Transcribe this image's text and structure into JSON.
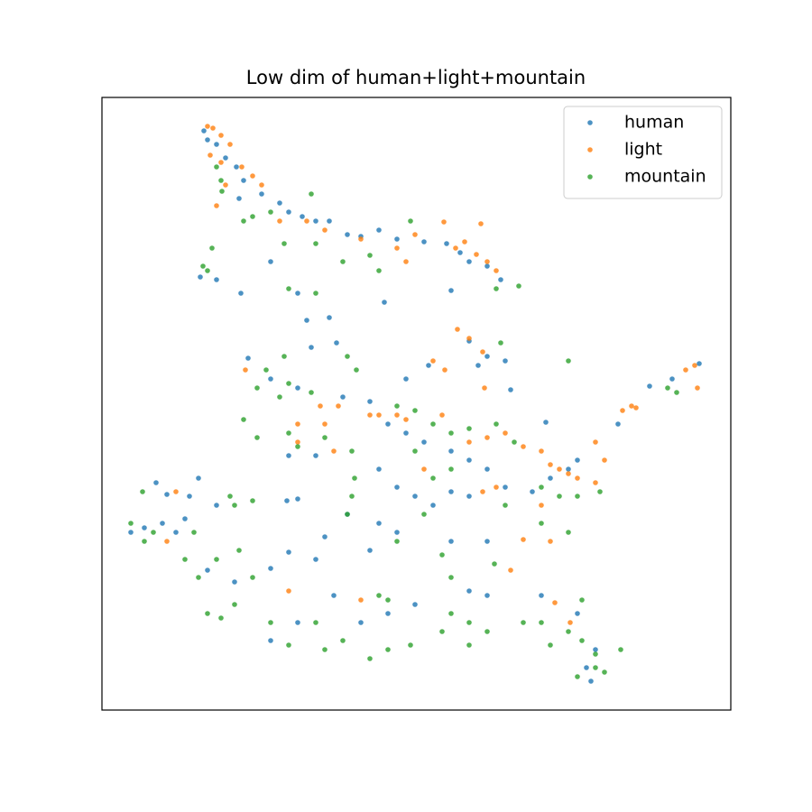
{
  "chart_data": {
    "type": "scatter",
    "title": "Low dim of human+light+mountain",
    "xlim": [
      113,
      810
    ],
    "ylim": [
      0,
      679
    ],
    "legend": "upper right",
    "series": [
      {
        "name": "human",
        "color": "#1f77b4",
        "x": [
          226,
          230,
          240,
          250,
          262,
          270,
          265,
          290,
          310,
          320,
          335,
          350,
          365,
          385,
          400,
          420,
          440,
          470,
          495,
          510,
          520,
          540,
          555,
          500,
          426,
          267,
          222,
          240,
          300,
          330,
          340,
          365,
          345,
          373,
          520,
          540,
          560,
          566,
          275,
          300,
          330,
          380,
          410,
          430,
          450,
          470,
          500,
          520,
          540,
          560,
          590,
          610,
          630,
          640,
          605,
          685,
          720,
          745,
          775,
          173,
          185,
          210,
          220,
          240,
          160,
          145,
          180,
          195,
          318,
          330,
          385,
          420,
          440,
          500,
          540,
          230,
          260,
          300,
          320,
          350,
          370,
          400,
          430,
          460,
          300,
          330,
          520,
          540,
          600,
          640,
          660,
          650,
          655,
          420,
          440,
          460,
          480,
          500,
          520,
          410,
          360,
          350,
          320,
          450,
          475,
          530,
          205
        ],
        "y": [
          642,
          632,
          627,
          612,
          602,
          587,
          567,
          572,
          562,
          552,
          547,
          542,
          542,
          527,
          525,
          532,
          522,
          519,
          517,
          507,
          497,
          492,
          477,
          465,
          452,
          462,
          480,
          477,
          497,
          462,
          432,
          435,
          402,
          407,
          409,
          392,
          387,
          355,
          390,
          367,
          357,
          347,
          342,
          317,
          307,
          297,
          287,
          277,
          267,
          247,
          242,
          257,
          267,
          277,
          319,
          317,
          359,
          367,
          384,
          252,
          239,
          237,
          257,
          227,
          202,
          197,
          207,
          197,
          232,
          234,
          217,
          207,
          197,
          187,
          187,
          155,
          142,
          157,
          175,
          167,
          127,
          97,
          107,
          117,
          77,
          97,
          132,
          127,
          127,
          107,
          67,
          47,
          32,
          267,
          247,
          237,
          227,
          242,
          237,
          177,
          192,
          282,
          282,
          367,
          382,
          382,
          212
        ]
      },
      {
        "name": "light",
        "color": "#ff7f0e",
        "x": [
          230,
          236,
          245,
          255,
          233,
          245,
          268,
          280,
          290,
          240,
          250,
          310,
          340,
          360,
          400,
          440,
          450,
          460,
          492,
          533,
          505,
          515,
          528,
          540,
          550,
          507,
          520,
          535,
          480,
          493,
          537,
          272,
          355,
          375,
          410,
          420,
          440,
          450,
          490,
          520,
          540,
          560,
          580,
          600,
          610,
          620,
          630,
          640,
          660,
          670,
          660,
          690,
          700,
          705,
          760,
          770,
          773,
          330,
          370,
          360,
          330,
          535,
          550,
          470,
          600,
          610,
          580,
          566,
          320,
          400,
          615,
          632,
          195,
          185
        ],
        "y": [
          647,
          645,
          637,
          627,
          615,
          607,
          602,
          592,
          582,
          559,
          582,
          542,
          542,
          532,
          522,
          512,
          497,
          527,
          541,
          539,
          512,
          519,
          505,
          497,
          487,
          422,
          412,
          397,
          387,
          377,
          357,
          377,
          337,
          337,
          327,
          327,
          327,
          322,
          327,
          297,
          302,
          307,
          292,
          287,
          272,
          267,
          262,
          257,
          252,
          277,
          297,
          332,
          337,
          335,
          377,
          382,
          357,
          297,
          287,
          317,
          317,
          242,
          247,
          267,
          227,
          187,
          189,
          155,
          132,
          122,
          119,
          97,
          242,
          187
        ]
      },
      {
        "name": "mountain",
        "color": "#2ca02c",
        "x": [
          240,
          245,
          246,
          270,
          280,
          300,
          345,
          315,
          350,
          380,
          410,
          455,
          420,
          550,
          575,
          230,
          235,
          320,
          350,
          225,
          295,
          285,
          310,
          320,
          345,
          395,
          385,
          315,
          270,
          285,
          320,
          330,
          360,
          390,
          393,
          440,
          460,
          480,
          500,
          520,
          550,
          570,
          600,
          620,
          640,
          665,
          630,
          600,
          560,
          158,
          160,
          145,
          170,
          215,
          205,
          220,
          240,
          265,
          280,
          230,
          245,
          260,
          300,
          320,
          350,
          360,
          380,
          410,
          430,
          455,
          420,
          430,
          490,
          500,
          520,
          540,
          520,
          580,
          600,
          630,
          645,
          660,
          670,
          688,
          610,
          548,
          500,
          490,
          470,
          440,
          390,
          385,
          460,
          480,
          500,
          260,
          280,
          255,
          630,
          555,
          740,
          750,
          640,
          660,
          645
        ],
        "y": [
          602,
          587,
          575,
          542,
          547,
          552,
          572,
          517,
          517,
          497,
          504,
          542,
          487,
          467,
          470,
          487,
          512,
          467,
          462,
          492,
          377,
          357,
          347,
          362,
          352,
          377,
          392,
          392,
          322,
          302,
          307,
          292,
          302,
          287,
          257,
          337,
          332,
          317,
          307,
          312,
          317,
          297,
          247,
          237,
          237,
          242,
          197,
          207,
          227,
          242,
          187,
          207,
          197,
          197,
          167,
          147,
          167,
          177,
          147,
          107,
          102,
          117,
          97,
          72,
          97,
          67,
          77,
          57,
          67,
          72,
          127,
          122,
          87,
          107,
          97,
          87,
          72,
          97,
          97,
          87,
          77,
          62,
          42,
          67,
          72,
          162,
          147,
          172,
          217,
          187,
          237,
          217,
          287,
          257,
          267,
          227,
          232,
          237,
          387,
          407,
          357,
          352,
          37,
          47,
          122
        ]
      }
    ]
  }
}
